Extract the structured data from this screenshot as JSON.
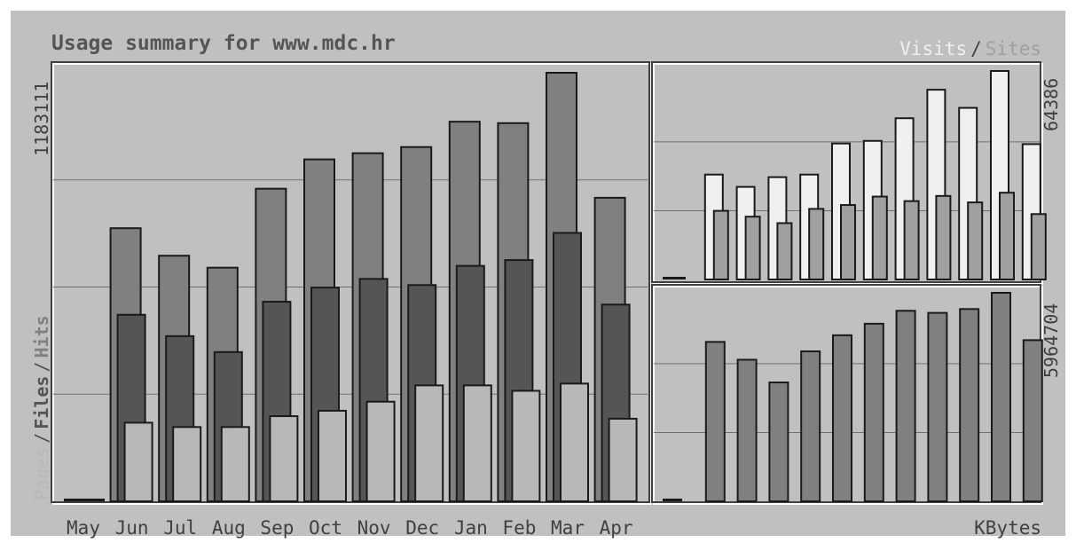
{
  "title": "Usage summary for www.mdc.hr",
  "legend_main": {
    "pages": "Pages",
    "sep1": "/",
    "files": "Files",
    "sep2": "/",
    "hits": "Hits"
  },
  "legend_visits": {
    "visits": "Visits",
    "sep": "/",
    "sites": "Sites"
  },
  "legend_kbytes": "KBytes",
  "colors": {
    "background": "#c0c0c0",
    "hits": "#808080",
    "files": "#555555",
    "pages": "#b8b8b8",
    "visits": "#f0f0f0",
    "sites": "#a0a0a0",
    "kbytes": "#808080",
    "grid": "#707070"
  },
  "chart_data": [
    {
      "type": "bar",
      "title": "Usage summary for www.mdc.hr",
      "categories": [
        "May",
        "Jun",
        "Jul",
        "Aug",
        "Sep",
        "Oct",
        "Nov",
        "Dec",
        "Jan",
        "Feb",
        "Mar",
        "Apr"
      ],
      "ymax_label": "1183111",
      "ylim": [
        0,
        1183111
      ],
      "grid": true,
      "series": [
        {
          "name": "Hits",
          "values": [
            5000,
            754000,
            678000,
            645000,
            863000,
            944000,
            961000,
            978000,
            1048000,
            1044000,
            1183111,
            838000
          ]
        },
        {
          "name": "Files",
          "values": [
            5000,
            515000,
            456000,
            412000,
            551000,
            590000,
            614000,
            597000,
            650000,
            666000,
            741000,
            543000
          ]
        },
        {
          "name": "Pages",
          "values": [
            5000,
            217000,
            205000,
            205000,
            235000,
            250000,
            275000,
            320000,
            320000,
            305000,
            325000,
            228000
          ]
        }
      ]
    },
    {
      "type": "bar",
      "categories": [
        "May",
        "Jun",
        "Jul",
        "Aug",
        "Sep",
        "Oct",
        "Nov",
        "Dec",
        "Jan",
        "Feb",
        "Mar",
        "Apr"
      ],
      "ymax_label": "64386",
      "ylim": [
        0,
        64386
      ],
      "grid": true,
      "series": [
        {
          "name": "Visits",
          "values": [
            500,
            32400,
            28600,
            31600,
            32400,
            42000,
            42800,
            49800,
            58600,
            53000,
            64386,
            41800
          ]
        },
        {
          "name": "Sites",
          "values": [
            500,
            21200,
            19400,
            17400,
            21800,
            23000,
            25600,
            24200,
            25800,
            23800,
            26800,
            20200
          ]
        }
      ]
    },
    {
      "type": "bar",
      "categories": [
        "May",
        "Jun",
        "Jul",
        "Aug",
        "Sep",
        "Oct",
        "Nov",
        "Dec",
        "Jan",
        "Feb",
        "Mar",
        "Apr"
      ],
      "ymax_label": "5964704",
      "ylim": [
        0,
        5964704
      ],
      "grid": true,
      "series": [
        {
          "name": "KBytes",
          "values": [
            30000,
            4560000,
            4050000,
            3400000,
            4290000,
            4750000,
            5080000,
            5450000,
            5390000,
            5500000,
            5964704,
            4610000
          ]
        }
      ]
    }
  ]
}
